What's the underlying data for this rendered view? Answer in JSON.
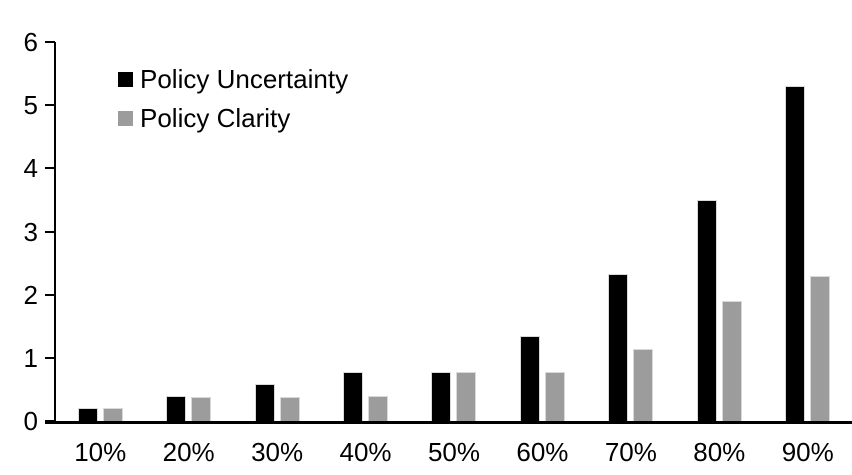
{
  "chart_data": {
    "type": "bar",
    "categories": [
      "10%",
      "20%",
      "30%",
      "40%",
      "50%",
      "60%",
      "70%",
      "80%",
      "90%"
    ],
    "series": [
      {
        "name": "Policy Uncertainty",
        "color": "#000000",
        "values": [
          0.2,
          0.4,
          0.58,
          0.77,
          0.78,
          1.34,
          2.33,
          3.5,
          5.3
        ]
      },
      {
        "name": "Policy Clarity",
        "color": "#9c9c9c",
        "values": [
          0.2,
          0.38,
          0.38,
          0.39,
          0.77,
          0.77,
          1.14,
          1.9,
          2.3
        ]
      }
    ],
    "ylim": [
      0,
      6
    ],
    "yticks": [
      0,
      1,
      2,
      3,
      4,
      5,
      6
    ],
    "grid": false,
    "legend_position": "top-left",
    "axis_color": "#000000",
    "bar_border_color": "#d9d9d9",
    "background_color": "#ffffff"
  }
}
